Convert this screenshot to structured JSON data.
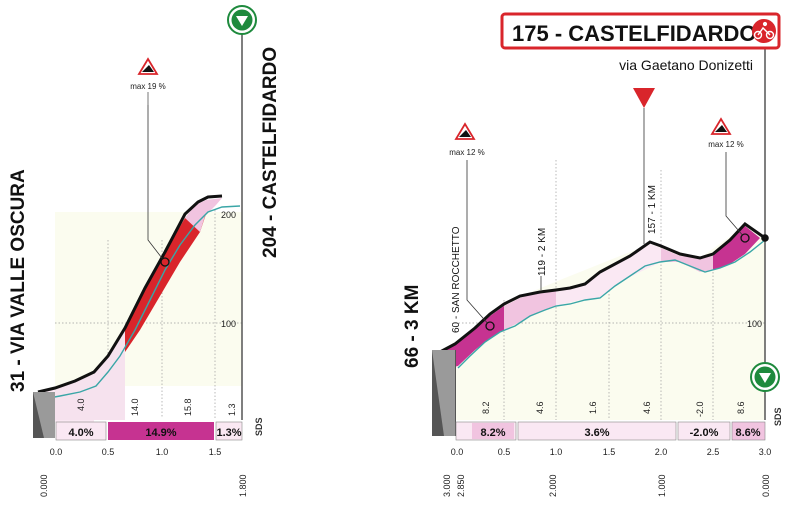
{
  "colors": {
    "red": "#d9252b",
    "magenta": "#c63391",
    "pink": "#f1c4e0",
    "lightpink": "#fae8f3",
    "cream": "#fbfcef",
    "teal": "#3aa6a7",
    "green": "#1e8a3d",
    "gray": "#8d8d8d"
  },
  "left_profile": {
    "start_label": "31 - VIA VALLE OSCURA",
    "end_label": "204 - CASTELFIDARDO",
    "climb": {
      "label": "max 19 %"
    },
    "alt_ticks": [
      "200",
      "100"
    ],
    "sds": "SDS",
    "km_ticks": [
      "0.0",
      "0.5",
      "1.0",
      "1.5"
    ],
    "distance_labels": [
      "0.000",
      "1.800"
    ],
    "segment_grades": [
      "4.0",
      "14.0",
      "15.8",
      "1.3"
    ],
    "grade_boxes": [
      "4.0%",
      "14.9%",
      "1.3%"
    ]
  },
  "right_profile": {
    "finish": {
      "title": "175 - CASTELFIDARDO",
      "subtitle": "via Gaetano Donizetti"
    },
    "start_label": "66 - 3 KM",
    "points": [
      "60 - SAN ROCCHETTO",
      "119 - 2 KM",
      "157 - 1 KM"
    ],
    "climbs": [
      {
        "label": "max 12 %"
      },
      {
        "label": "max 12 %"
      }
    ],
    "alt_ticks": [
      "100"
    ],
    "sds": "SDS",
    "km_ticks": [
      "0.0",
      "0.5",
      "1.0",
      "1.5",
      "2.0",
      "2.5",
      "3.0"
    ],
    "distance_labels": [
      "3.000",
      "2.850",
      "2.000",
      "1.000",
      "0.000"
    ],
    "segment_grades": [
      "8.2",
      "4.6",
      "1.6",
      "4.6",
      "-2.0",
      "8.6"
    ],
    "grade_boxes": [
      "8.2%",
      "3.6%",
      "-2.0%",
      "8.6%"
    ]
  }
}
